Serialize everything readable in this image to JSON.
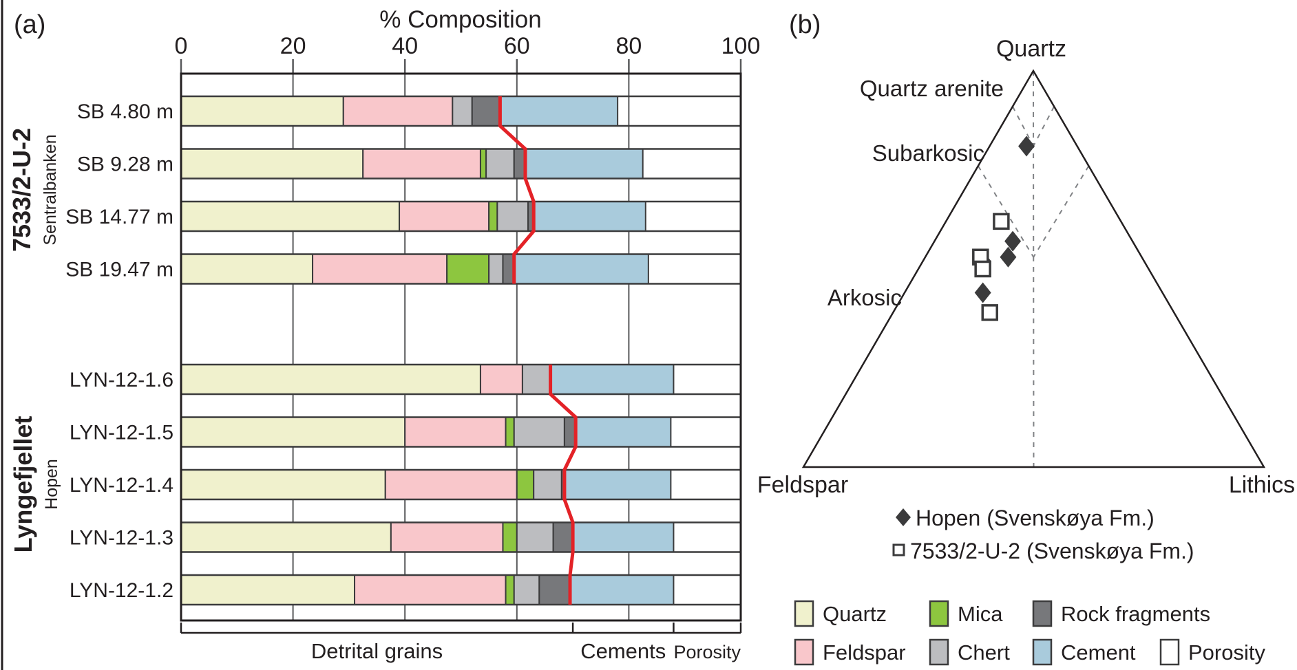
{
  "figure": {
    "background": "#ffffff",
    "colors": {
      "accent_red": "#e32227",
      "text": "#231f20",
      "grid": "#58595b",
      "bar_border": "#3b3b3c"
    },
    "panel_a": {
      "label": "(a)",
      "title": "% Composition",
      "axis_ticks": [
        0,
        20,
        40,
        60,
        80,
        100
      ],
      "groups": [
        {
          "name": "7533/2-U-2",
          "subname": "Sentralbanken"
        },
        {
          "name": "Lyngefjellet",
          "subname": "Hopen"
        }
      ],
      "footer_brackets": [
        {
          "label": "Detrital grains",
          "from": 0,
          "to": 70
        },
        {
          "label": "Cements",
          "from": 70,
          "to": 88
        },
        {
          "label": "Porosity",
          "from": 88,
          "to": 100
        }
      ],
      "chart_data": {
        "type": "bar",
        "orientation": "horizontal",
        "stacked": true,
        "xlabel": "% Composition",
        "xlim": [
          0,
          100
        ],
        "grid": true,
        "categories": [
          "SB 4.80 m",
          "SB 9.28 m",
          "SB 14.77 m",
          "SB 19.47 m",
          "LYN-12-1.6",
          "LYN-12-1.5",
          "LYN-12-1.4",
          "LYN-12-1.3",
          "LYN-12-1.2"
        ],
        "category_groups": [
          {
            "name": "7533/2-U-2",
            "subname": "Sentralbanken",
            "count": 4
          },
          {
            "name": "Lyngefjellet",
            "subname": "Hopen",
            "count": 5
          }
        ],
        "series": [
          {
            "name": "Quartz",
            "color": "#f0f1cd",
            "values": [
              29,
              32.5,
              39,
              23.5,
              53.5,
              40,
              36.5,
              37.5,
              31
            ]
          },
          {
            "name": "Feldspar",
            "color": "#f9c7cb",
            "values": [
              19.5,
              21,
              16,
              24,
              7.5,
              18,
              23.5,
              20,
              27
            ]
          },
          {
            "name": "Mica",
            "color": "#8dc63f",
            "values": [
              0,
              1,
              1.5,
              7.5,
              0,
              1.5,
              3,
              2.5,
              1.5
            ]
          },
          {
            "name": "Chert",
            "color": "#bcbdc0",
            "values": [
              3.5,
              5,
              5.5,
              2.5,
              5,
              9,
              5,
              6.5,
              4.5
            ]
          },
          {
            "name": "Rock fragments",
            "color": "#77787b",
            "values": [
              5,
              2,
              1,
              2,
              0,
              2,
              0.5,
              3.5,
              5.5
            ]
          },
          {
            "name": "Cement",
            "color": "#a9cbdc",
            "values": [
              21,
              21,
              20,
              24,
              22,
              17,
              19,
              18,
              18.5
            ]
          },
          {
            "name": "Porosity",
            "color": "#ffffff",
            "values": [
              22,
              17.5,
              17,
              16.5,
              12,
              12.5,
              12.5,
              12,
              12
            ]
          }
        ],
        "divider_line": {
          "name": "detrital-cement-boundary",
          "color": "#e32227",
          "values": [
            57,
            61.5,
            63,
            59.5,
            66,
            70.5,
            68.5,
            70,
            69.5
          ]
        }
      }
    },
    "panel_b": {
      "label": "(b)",
      "corner_labels": {
        "top": "Quartz",
        "bottom_left": "Feldspar",
        "bottom_right": "Lithics"
      },
      "field_labels": [
        "Quartz arenite",
        "Subarkosic",
        "Arkosic"
      ],
      "chart_data": {
        "type": "scatter",
        "subtype": "ternary",
        "axes": [
          "Quartz",
          "Feldspar",
          "Lithics"
        ],
        "series": [
          {
            "name": "Hopen (Svenskøya Fm.)",
            "marker": "filled-diamond",
            "points": [
              {
                "q": 81,
                "f": 11,
                "l": 8
              },
              {
                "q": 57,
                "f": 26,
                "l": 17
              },
              {
                "q": 53,
                "f": 29,
                "l": 18
              },
              {
                "q": 52,
                "f": 35,
                "l": 13
              },
              {
                "q": 44,
                "f": 39,
                "l": 17
              }
            ]
          },
          {
            "name": "7533/2-U-2 (Svenskøya Fm.)",
            "marker": "open-square",
            "points": [
              {
                "q": 62,
                "f": 26,
                "l": 12
              },
              {
                "q": 53,
                "f": 35,
                "l": 12
              },
              {
                "q": 50,
                "f": 36,
                "l": 14
              },
              {
                "q": 39,
                "f": 40,
                "l": 21
              }
            ]
          }
        ],
        "classification_lines": [
          {
            "name": "centerline",
            "points": [
              [
                100,
                0,
                0
              ],
              [
                0,
                50,
                50
              ]
            ]
          },
          {
            "name": "upper-left",
            "points": [
              [
                91,
                9,
                0
              ],
              [
                81,
                9.5,
                9.5
              ]
            ]
          },
          {
            "name": "upper-right",
            "points": [
              [
                91,
                0,
                9
              ],
              [
                81,
                9.5,
                9.5
              ]
            ]
          },
          {
            "name": "lower-left",
            "points": [
              [
                76,
                24,
                0
              ],
              [
                53,
                23.5,
                23.5
              ]
            ]
          },
          {
            "name": "lower-right",
            "points": [
              [
                76,
                0,
                24
              ],
              [
                53,
                23.5,
                23.5
              ]
            ]
          }
        ]
      },
      "marker_legend": [
        {
          "marker": "filled-diamond",
          "label": "Hopen (Svenskøya Fm.)"
        },
        {
          "marker": "open-square",
          "label": "7533/2-U-2 (Svenskøya Fm.)"
        }
      ]
    },
    "color_legend": {
      "rows": [
        [
          {
            "label": "Quartz",
            "color": "#f0f1cd"
          },
          {
            "label": "Mica",
            "color": "#8dc63f"
          },
          {
            "label": "Rock fragments",
            "color": "#77787b"
          }
        ],
        [
          {
            "label": "Feldspar",
            "color": "#f9c7cb"
          },
          {
            "label": "Chert",
            "color": "#bcbdc0"
          },
          {
            "label": "Cement",
            "color": "#a9cbdc"
          },
          {
            "label": "Porosity",
            "color": "#ffffff"
          }
        ]
      ]
    }
  }
}
